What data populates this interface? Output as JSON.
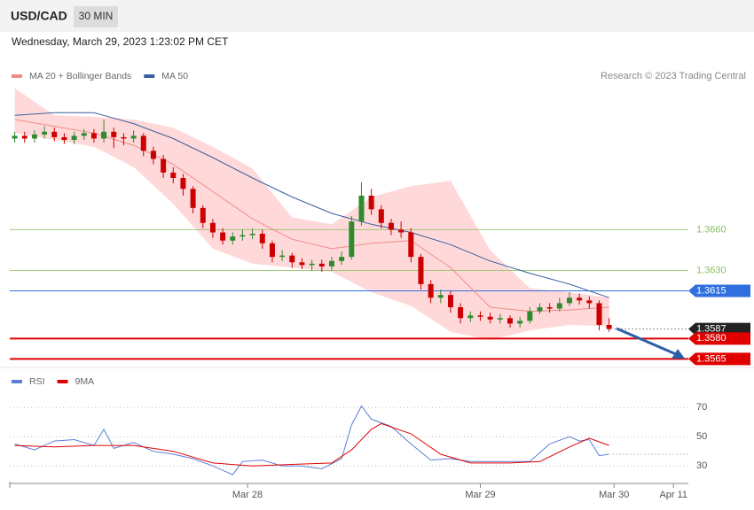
{
  "header": {
    "symbol": "USD/CAD",
    "timeframe": "30 MIN",
    "datetime": "Wednesday, March 29, 2023 1:23:02 PM CET"
  },
  "chart_data": [
    {
      "type": "candlestick",
      "credit": "Research © 2023 Trading Central",
      "xlim": [
        -0.5,
        68
      ],
      "ylim": [
        1.3562,
        1.3767
      ],
      "up_color": "#2e8b2e",
      "down_color": "#cc0000",
      "open": [
        1.3727,
        1.3729,
        1.3727,
        1.373,
        1.3732,
        1.3728,
        1.3726,
        1.3729,
        1.3731,
        1.3727,
        1.3732,
        1.3728,
        1.3727,
        1.3729,
        1.3718,
        1.3712,
        1.3702,
        1.3698,
        1.369,
        1.3676,
        1.3665,
        1.3658,
        1.3652,
        1.3655,
        1.3656,
        1.3657,
        1.365,
        1.364,
        1.3641,
        1.3636,
        1.3634,
        1.3635,
        1.3633,
        1.3637,
        1.364,
        1.3666,
        1.3685,
        1.3675,
        1.3665,
        1.366,
        1.3658,
        1.364,
        1.362,
        1.361,
        1.3612,
        1.3603,
        1.3595,
        1.3597,
        1.3596,
        1.3594,
        1.3595,
        1.3591,
        1.3593,
        1.36,
        1.3603,
        1.3602,
        1.3606,
        1.361,
        1.3608,
        1.3606,
        1.359
      ],
      "high": [
        1.3732,
        1.3732,
        1.3733,
        1.3736,
        1.3735,
        1.3731,
        1.3732,
        1.3734,
        1.3734,
        1.3741,
        1.3735,
        1.3731,
        1.3733,
        1.3731,
        1.3721,
        1.3715,
        1.3706,
        1.3701,
        1.3692,
        1.3678,
        1.3668,
        1.3661,
        1.3658,
        1.366,
        1.3661,
        1.366,
        1.3652,
        1.3645,
        1.3643,
        1.3639,
        1.3638,
        1.3638,
        1.364,
        1.3644,
        1.367,
        1.3695,
        1.369,
        1.3678,
        1.3668,
        1.3666,
        1.3661,
        1.3642,
        1.3623,
        1.3616,
        1.3615,
        1.3606,
        1.36,
        1.36,
        1.3599,
        1.3598,
        1.3597,
        1.3596,
        1.3603,
        1.3606,
        1.3606,
        1.361,
        1.3614,
        1.3613,
        1.3611,
        1.3608,
        1.3595
      ],
      "low": [
        1.3724,
        1.3724,
        1.3724,
        1.3727,
        1.3725,
        1.3723,
        1.3723,
        1.3726,
        1.3724,
        1.3724,
        1.372,
        1.3722,
        1.3724,
        1.3714,
        1.3708,
        1.3698,
        1.3694,
        1.3685,
        1.3672,
        1.3661,
        1.3654,
        1.3649,
        1.3649,
        1.3652,
        1.3653,
        1.3646,
        1.3636,
        1.3637,
        1.3632,
        1.3631,
        1.363,
        1.3629,
        1.363,
        1.3634,
        1.3638,
        1.3663,
        1.3671,
        1.3661,
        1.3656,
        1.3654,
        1.3636,
        1.3616,
        1.3606,
        1.3606,
        1.3599,
        1.3591,
        1.3592,
        1.3593,
        1.3591,
        1.3591,
        1.3588,
        1.3588,
        1.3591,
        1.3598,
        1.3599,
        1.36,
        1.3604,
        1.3605,
        1.3602,
        1.3586,
        1.3585
      ],
      "close": [
        1.3729,
        1.3727,
        1.373,
        1.3732,
        1.3728,
        1.3726,
        1.3729,
        1.3731,
        1.3727,
        1.3732,
        1.3728,
        1.3727,
        1.3729,
        1.3718,
        1.3712,
        1.3702,
        1.3698,
        1.369,
        1.3676,
        1.3665,
        1.3658,
        1.3652,
        1.3655,
        1.3656,
        1.3657,
        1.365,
        1.364,
        1.3641,
        1.3636,
        1.3634,
        1.3635,
        1.3633,
        1.3637,
        1.364,
        1.3666,
        1.3685,
        1.3675,
        1.3665,
        1.366,
        1.3658,
        1.364,
        1.362,
        1.361,
        1.3612,
        1.3603,
        1.3595,
        1.3597,
        1.3596,
        1.3594,
        1.3595,
        1.3591,
        1.3593,
        1.36,
        1.3603,
        1.3602,
        1.3606,
        1.361,
        1.3608,
        1.3606,
        1.359,
        1.3587
      ],
      "band_color": "#ffd9d9",
      "series": [
        {
          "name": "MA 20 + Bollinger Bands",
          "color": "#f08a8a",
          "x": [
            0,
            4,
            8,
            12,
            16,
            20,
            24,
            28,
            32,
            36,
            40,
            44,
            48,
            52,
            56,
            60
          ],
          "values": [
            1.3741,
            1.3736,
            1.3731,
            1.3722,
            1.3708,
            1.3688,
            1.3668,
            1.3653,
            1.3646,
            1.365,
            1.3652,
            1.3632,
            1.3603,
            1.36,
            1.3601,
            1.3603
          ],
          "upper": [
            1.3764,
            1.3744,
            1.3743,
            1.3741,
            1.3735,
            1.3721,
            1.3705,
            1.3669,
            1.3664,
            1.3684,
            1.3692,
            1.3696,
            1.3645,
            1.3617,
            1.3614,
            1.361
          ],
          "lower": [
            1.3731,
            1.3726,
            1.3721,
            1.3706,
            1.3679,
            1.3646,
            1.3635,
            1.3632,
            1.3629,
            1.3614,
            1.3604,
            1.3585,
            1.3579,
            1.3586,
            1.359,
            1.3589
          ]
        },
        {
          "name": "MA 50",
          "color": "#3a5fa0",
          "x": [
            0,
            4,
            8,
            12,
            16,
            20,
            24,
            28,
            32,
            36,
            40,
            44,
            48,
            52,
            56,
            60
          ],
          "values": [
            1.3744,
            1.3746,
            1.3746,
            1.3738,
            1.3727,
            1.3713,
            1.3698,
            1.3684,
            1.3672,
            1.3664,
            1.3658,
            1.3649,
            1.3637,
            1.3628,
            1.362,
            1.361
          ]
        }
      ],
      "levels": [
        {
          "value": 1.366,
          "label": "1.3660",
          "color": "#8cc063",
          "line": "solid",
          "tag": false
        },
        {
          "value": 1.363,
          "label": "1.3630",
          "color": "#8cc063",
          "line": "solid",
          "tag": false
        },
        {
          "value": 1.3615,
          "label": "1.3615",
          "color": "#2f6fe0",
          "line": "solid",
          "tag": true
        },
        {
          "value": 1.3587,
          "label": "1.3587",
          "color": "#222222",
          "line": "dotted",
          "tag": true
        },
        {
          "value": 1.358,
          "label": "1.3580",
          "color": "#e00000",
          "line": "thick",
          "tag": true
        },
        {
          "value": 1.3565,
          "label": "1.3565",
          "color": "#e00000",
          "line": "thick",
          "tag": true
        }
      ]
    },
    {
      "type": "line",
      "xlim": [
        -0.5,
        68
      ],
      "ylim": [
        18,
        78
      ],
      "yticks": [
        30,
        50,
        70
      ],
      "grid": true,
      "xticks": [
        {
          "value": 23.5,
          "label": "Mar 28"
        },
        {
          "value": 47,
          "label": "Mar 29"
        },
        {
          "value": 60.5,
          "label": "Mar 30"
        },
        {
          "value": 66.5,
          "label": "Apr 11"
        }
      ],
      "series": [
        {
          "name": "RSI",
          "color": "#5b7fd6",
          "x": [
            0,
            2,
            4,
            6,
            8,
            9,
            10,
            12,
            14,
            16,
            18,
            20,
            22,
            23,
            25,
            27,
            29,
            31,
            33,
            34,
            35,
            36,
            38,
            40,
            42,
            44,
            46,
            48,
            50,
            52,
            54,
            56,
            57,
            58,
            59,
            60
          ],
          "values": [
            45,
            41,
            47,
            48,
            44,
            55,
            42,
            46,
            40,
            38,
            35,
            30,
            24,
            33,
            34,
            30,
            30,
            28,
            35,
            58,
            71,
            62,
            57,
            45,
            34,
            35,
            33,
            33,
            33,
            33,
            45,
            50,
            47,
            48,
            37,
            38
          ]
        },
        {
          "name": "9MA",
          "color": "#e00000",
          "x": [
            0,
            4,
            8,
            12,
            16,
            20,
            24,
            28,
            32,
            34,
            36,
            37,
            40,
            43,
            46,
            50,
            53,
            56,
            58,
            60
          ],
          "values": [
            44,
            43,
            44,
            44,
            40,
            32,
            30,
            31,
            32,
            41,
            55,
            59,
            52,
            38,
            32,
            32,
            33,
            43,
            49,
            44
          ]
        }
      ]
    }
  ]
}
